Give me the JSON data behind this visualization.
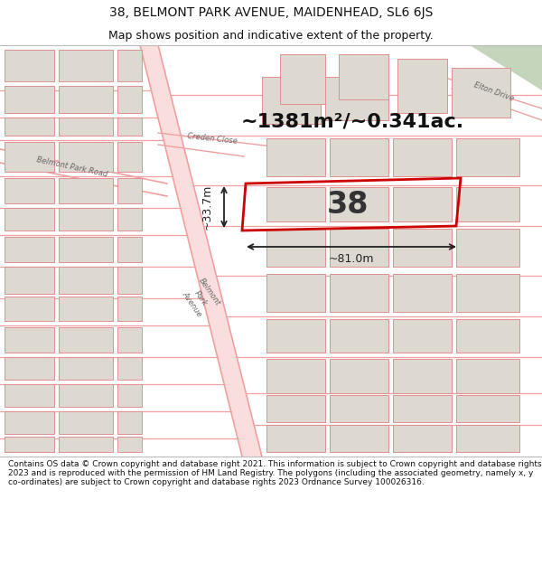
{
  "title_line1": "38, BELMONT PARK AVENUE, MAIDENHEAD, SL6 6JS",
  "title_line2": "Map shows position and indicative extent of the property.",
  "area_text": "~1381m²/~0.341ac.",
  "number_label": "38",
  "dim_horizontal": "~81.0m",
  "dim_vertical": "~33.7m",
  "footer_text": "Contains OS data © Crown copyright and database right 2021. This information is subject to Crown copyright and database rights 2023 and is reproduced with the permission of HM Land Registry. The polygons (including the associated geometry, namely x, y co-ordinates) are subject to Crown copyright and database rights 2023 Ordnance Survey 100026316.",
  "bg_color": "#eeebe6",
  "road_color": "#f0a0a0",
  "road_fill": "#f8d0d0",
  "highlight_color": "#cc0000",
  "green_patch": "#c5d5bc",
  "white": "#ffffff",
  "building_fill": "#ddd8d0",
  "building_edge": "#e09090",
  "title_fontsize": 10,
  "subtitle_fontsize": 9,
  "area_fontsize": 16,
  "number_fontsize": 24,
  "dim_fontsize": 9,
  "road_label_fontsize": 6,
  "footer_fontsize": 6.5
}
